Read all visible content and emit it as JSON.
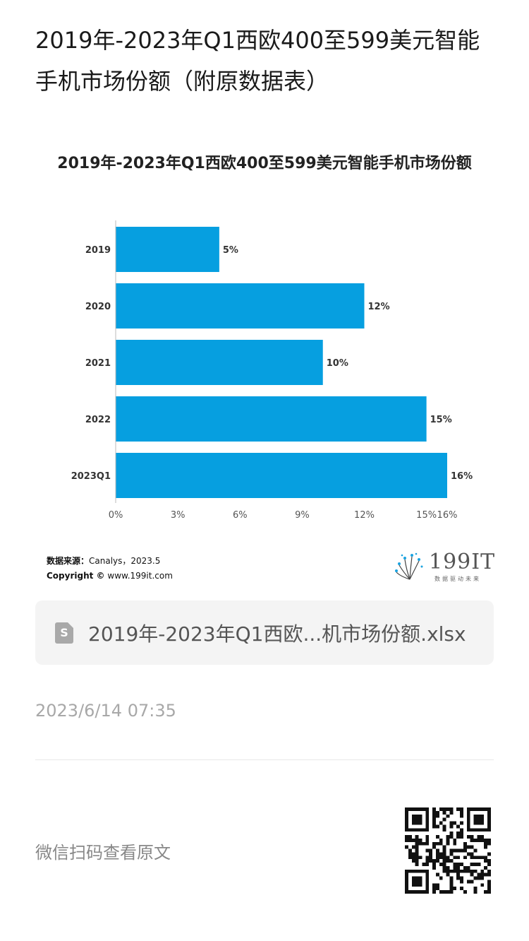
{
  "article": {
    "title": "2019年-2023年Q1西欧400至599美元智能手机市场份额（附原数据表）"
  },
  "chart_data": {
    "type": "bar",
    "orientation": "horizontal",
    "title": "2019年-2023年Q1西欧400至599美元智能手机市场份额",
    "categories": [
      "2019",
      "2020",
      "2021",
      "2022",
      "2023Q1"
    ],
    "values": [
      5,
      12,
      10,
      15,
      16
    ],
    "value_labels": [
      "5%",
      "12%",
      "10%",
      "15%",
      "16%"
    ],
    "x_ticks": [
      "0%",
      "3%",
      "6%",
      "9%",
      "12%",
      "15%",
      "16%"
    ],
    "x_tick_values": [
      0,
      3,
      6,
      9,
      12,
      15,
      16
    ],
    "xlim": [
      0,
      16
    ],
    "grid": false,
    "bar_color": "#069fe0",
    "source_label": "数据来源：",
    "source_value": "Canalys，2023.5",
    "copyright_label": "Copyright ©",
    "copyright_value": "www.199it.com"
  },
  "logo": {
    "text": "199IT",
    "tagline": "数据驱动未来"
  },
  "attachment": {
    "icon": "spreadsheet-file-icon",
    "icon_glyph": "S",
    "filename": "2019年-2023年Q1西欧...机市场份额.xlsx"
  },
  "meta": {
    "timestamp": "2023/6/14 07:35"
  },
  "footer": {
    "scan_text": "微信扫码查看原文",
    "qr_icon": "qr-code-icon"
  }
}
